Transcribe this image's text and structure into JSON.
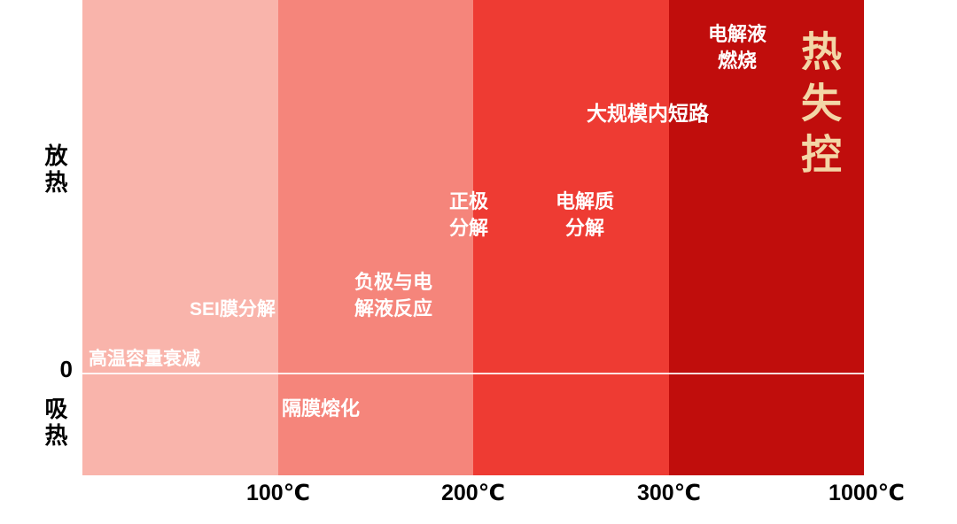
{
  "colors": {
    "background": "#FFFFFF",
    "band_0_100": "#F9B4AB",
    "band_100_200": "#F5857B",
    "band_200_300": "#EE3B33",
    "band_300_1000": "#C00D0C",
    "annotation_text": "#FFFFFF",
    "thermal_runaway_text": "#F3D6A6",
    "axis_text": "#000000",
    "zero_line": "#FFFFFF"
  },
  "y_axis": {
    "top_label": "放热",
    "zero_label": "0",
    "bottom_label": "吸热"
  },
  "x_axis": {
    "ticks": [
      "100℃",
      "200℃",
      "300℃",
      "1000℃"
    ]
  },
  "labels": {
    "capacity_decay": "高温容量衰减",
    "sei_decomposition": "SEI膜分解",
    "anode_electrolyte_reaction": "负极与电\n解液反应",
    "separator_melting": "隔膜熔化",
    "cathode_decomposition": "正极\n分解",
    "electrolyte_decomposition": "电解质\n分解",
    "internal_short_circuit": "大规模内短路",
    "electrolyte_combustion": "电解液\n燃烧",
    "thermal_runaway": "热失控"
  },
  "chart_data": {
    "type": "area",
    "title": "",
    "xlabel": "",
    "ylabel": "",
    "x_tick_labels": [
      "100℃",
      "200℃",
      "300℃",
      "1000℃"
    ],
    "y_axis_labels": [
      "放热",
      "0",
      "吸热"
    ],
    "zero_baseline": 0,
    "legend": "none",
    "grid": "off",
    "temperature_bands": [
      {
        "temp_range": "0-100℃",
        "color": "#F9B4AB",
        "events": [
          {
            "label": "高温容量衰减",
            "sign": "exothermic",
            "intensity": 1
          },
          {
            "label": "SEI膜分解",
            "sign": "exothermic",
            "intensity": 2
          }
        ]
      },
      {
        "temp_range": "100-200℃",
        "color": "#F5857B",
        "events": [
          {
            "label": "负极与电解液反应",
            "sign": "exothermic",
            "intensity": 3
          },
          {
            "label": "隔膜熔化",
            "sign": "endothermic",
            "intensity": 1
          }
        ]
      },
      {
        "temp_range": "200-300℃",
        "color": "#EE3B33",
        "events": [
          {
            "label": "正极分解",
            "sign": "exothermic",
            "intensity": 4
          },
          {
            "label": "电解质分解",
            "sign": "exothermic",
            "intensity": 4
          },
          {
            "label": "大规模内短路",
            "sign": "exothermic",
            "intensity": 5
          }
        ]
      },
      {
        "temp_range": "300-1000℃",
        "color": "#C00D0C",
        "events": [
          {
            "label": "电解液燃烧",
            "sign": "exothermic",
            "intensity": 6
          },
          {
            "label": "热失控",
            "sign": "exothermic",
            "intensity": 7
          }
        ]
      }
    ]
  }
}
